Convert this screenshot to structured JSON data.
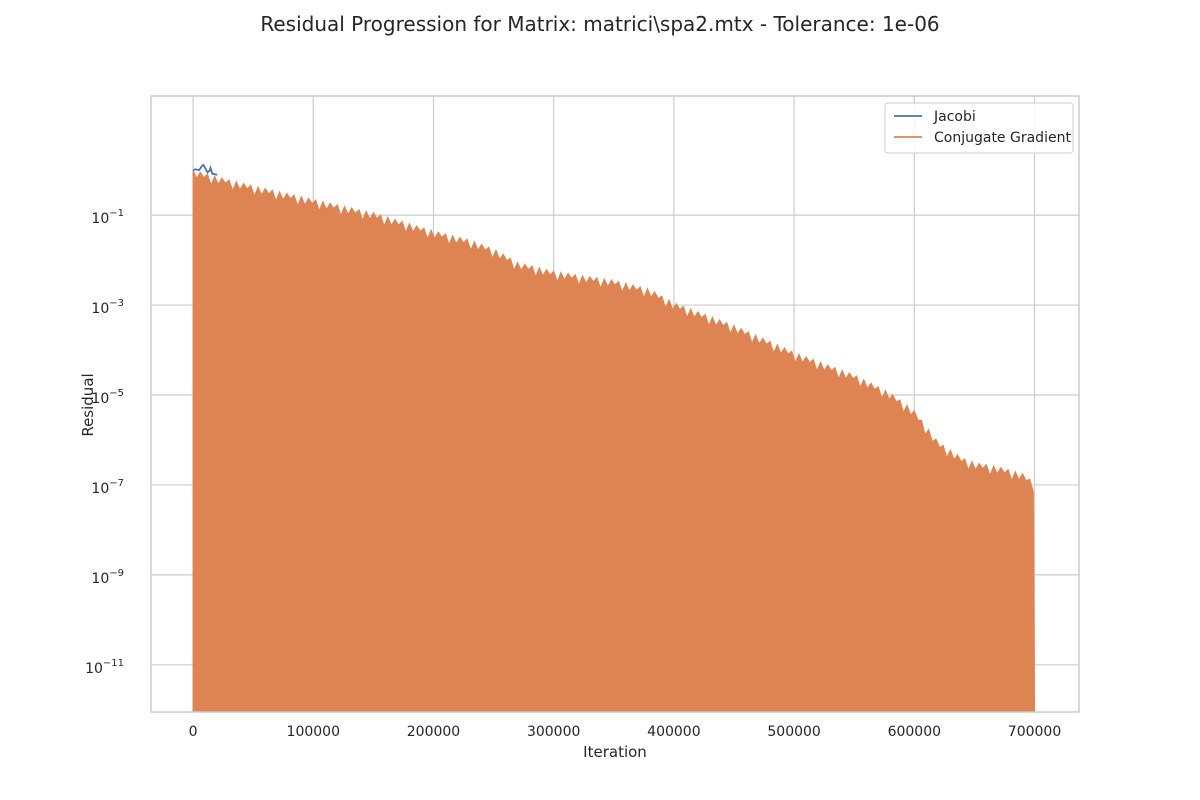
{
  "chart_data": {
    "type": "line",
    "title": "Residual Progression for Matrix: matrici\\spa2.mtx - Tolerance: 1e-06",
    "xlabel": "Iteration",
    "ylabel": "Residual",
    "yscale": "log",
    "xlim": [
      -35000,
      737000
    ],
    "ylim_log10": [
      -12.05,
      1.65
    ],
    "xticks": [
      0,
      100000,
      200000,
      300000,
      400000,
      500000,
      600000,
      700000
    ],
    "xtick_labels": [
      "0",
      "100000",
      "200000",
      "300000",
      "400000",
      "500000",
      "600000",
      "700000"
    ],
    "yticks_exponent": [
      -1,
      -3,
      -5,
      -7,
      -9,
      -11
    ],
    "ytick_base": "10",
    "ytick_exponents_text": [
      "−1",
      "−3",
      "−5",
      "−7",
      "−9",
      "−11"
    ],
    "grid": true,
    "legend_position": "top-right",
    "series": [
      {
        "name": "Jacobi",
        "color": "#4c72b0",
        "x": [
          0,
          2000,
          5000,
          7000,
          8500,
          10000,
          12000,
          13500,
          14500,
          16000,
          20000
        ],
        "log10_values": [
          0.0,
          0.02,
          0.0,
          0.08,
          0.12,
          0.05,
          -0.05,
          -0.02,
          0.05,
          -0.08,
          -0.1
        ]
      },
      {
        "name": "Conjugate Gradient",
        "color": "#dd8452",
        "fill_floor_log10": -12.05,
        "x": [
          0,
          20000,
          50000,
          100000,
          150000,
          200000,
          230000,
          250000,
          270000,
          300000,
          350000,
          380000,
          400000,
          450000,
          500000,
          520000,
          550000,
          580000,
          600000,
          620000,
          640000,
          650000,
          670000,
          690000,
          700000
        ],
        "log10_values": [
          0.0,
          -0.15,
          -0.35,
          -0.65,
          -0.95,
          -1.35,
          -1.55,
          -1.75,
          -2.05,
          -2.25,
          -2.45,
          -2.65,
          -2.95,
          -3.45,
          -4.05,
          -4.25,
          -4.55,
          -4.95,
          -5.35,
          -6.05,
          -6.4,
          -6.5,
          -6.6,
          -6.75,
          -6.95
        ]
      }
    ]
  }
}
